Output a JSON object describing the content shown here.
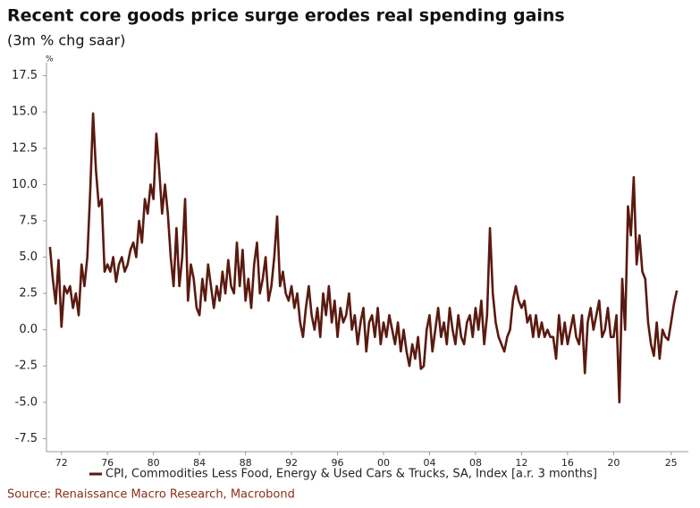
{
  "chart_data": {
    "type": "line",
    "title": "Recent core goods price surge erodes real spending gains",
    "subtitle": "(3m % chg saar)",
    "y_axis_label": "%",
    "source": "Source: Renaissance Macro Research, Macrobond",
    "x": [
      1971,
      1971.25,
      1971.5,
      1971.75,
      1972,
      1972.25,
      1972.5,
      1972.75,
      1973,
      1973.25,
      1973.5,
      1973.75,
      1974,
      1974.25,
      1974.5,
      1974.75,
      1975,
      1975.25,
      1975.5,
      1975.75,
      1976,
      1976.25,
      1976.5,
      1976.75,
      1977,
      1977.25,
      1977.5,
      1977.75,
      1978,
      1978.25,
      1978.5,
      1978.75,
      1979,
      1979.25,
      1979.5,
      1979.75,
      1980,
      1980.25,
      1980.5,
      1980.75,
      1981,
      1981.25,
      1981.5,
      1981.75,
      1982,
      1982.25,
      1982.5,
      1982.75,
      1983,
      1983.25,
      1983.5,
      1983.75,
      1984,
      1984.25,
      1984.5,
      1984.75,
      1985,
      1985.25,
      1985.5,
      1985.75,
      1986,
      1986.25,
      1986.5,
      1986.75,
      1987,
      1987.25,
      1987.5,
      1987.75,
      1988,
      1988.25,
      1988.5,
      1988.75,
      1989,
      1989.25,
      1989.5,
      1989.75,
      1990,
      1990.25,
      1990.5,
      1990.75,
      1991,
      1991.25,
      1991.5,
      1991.75,
      1992,
      1992.25,
      1992.5,
      1992.75,
      1993,
      1993.25,
      1993.5,
      1993.75,
      1994,
      1994.25,
      1994.5,
      1994.75,
      1995,
      1995.25,
      1995.5,
      1995.75,
      1996,
      1996.25,
      1996.5,
      1996.75,
      1997,
      1997.25,
      1997.5,
      1997.75,
      1998,
      1998.25,
      1998.5,
      1998.75,
      1999,
      1999.25,
      1999.5,
      1999.75,
      2000,
      2000.25,
      2000.5,
      2000.75,
      2001,
      2001.25,
      2001.5,
      2001.75,
      2002,
      2002.25,
      2002.5,
      2002.75,
      2003,
      2003.25,
      2003.5,
      2003.75,
      2004,
      2004.25,
      2004.5,
      2004.75,
      2005,
      2005.25,
      2005.5,
      2005.75,
      2006,
      2006.25,
      2006.5,
      2006.75,
      2007,
      2007.25,
      2007.5,
      2007.75,
      2008,
      2008.25,
      2008.5,
      2008.75,
      2009,
      2009.25,
      2009.5,
      2009.75,
      2010,
      2010.25,
      2010.5,
      2010.75,
      2011,
      2011.25,
      2011.5,
      2011.75,
      2012,
      2012.25,
      2012.5,
      2012.75,
      2013,
      2013.25,
      2013.5,
      2013.75,
      2014,
      2014.25,
      2014.5,
      2014.75,
      2015,
      2015.25,
      2015.5,
      2015.75,
      2016,
      2016.25,
      2016.5,
      2016.75,
      2017,
      2017.25,
      2017.5,
      2017.75,
      2018,
      2018.25,
      2018.5,
      2018.75,
      2019,
      2019.25,
      2019.5,
      2019.75,
      2020,
      2020.25,
      2020.5,
      2020.75,
      2021,
      2021.25,
      2021.5,
      2021.75,
      2022,
      2022.25,
      2022.5,
      2022.75,
      2023,
      2023.25,
      2023.5,
      2023.75,
      2024,
      2024.25,
      2024.5,
      2024.75,
      2025,
      2025.25,
      2025.5
    ],
    "series": [
      {
        "name": "CPI, Commodities Less Food, Energy & Used Cars & Trucks, SA, Index [a.r. 3 months]",
        "color": "#5a1a10",
        "values": [
          5.7,
          3.5,
          1.8,
          4.8,
          0.2,
          3.0,
          2.5,
          3.0,
          1.5,
          2.5,
          1.0,
          4.5,
          3.0,
          5.0,
          9.5,
          14.9,
          11.0,
          8.5,
          9.0,
          4.0,
          4.5,
          4.0,
          5.0,
          3.3,
          4.5,
          5.0,
          4.0,
          4.5,
          5.5,
          6.0,
          5.0,
          7.5,
          6.0,
          9.0,
          8.0,
          10.0,
          9.0,
          13.5,
          11.0,
          8.0,
          10.0,
          8.0,
          5.0,
          3.0,
          7.0,
          3.0,
          5.0,
          9.0,
          2.0,
          4.5,
          3.5,
          1.5,
          1.0,
          3.5,
          2.0,
          4.5,
          3.0,
          1.5,
          3.0,
          2.0,
          4.0,
          2.5,
          4.8,
          3.0,
          2.5,
          6.0,
          3.0,
          5.5,
          2.0,
          3.5,
          1.5,
          4.5,
          6.0,
          2.5,
          3.5,
          5.0,
          2.0,
          3.0,
          5.0,
          7.8,
          3.0,
          4.0,
          2.5,
          2.0,
          3.0,
          1.5,
          2.5,
          0.5,
          -0.5,
          1.5,
          3.0,
          1.0,
          0.0,
          1.5,
          -0.5,
          2.5,
          1.0,
          3.0,
          0.5,
          2.0,
          -0.5,
          1.5,
          0.5,
          1.0,
          2.5,
          0.0,
          1.0,
          -1.0,
          0.5,
          1.5,
          -1.5,
          0.5,
          1.0,
          -0.5,
          1.5,
          -1.0,
          0.5,
          -0.5,
          1.0,
          0.0,
          -1.0,
          0.5,
          -1.5,
          0.0,
          -1.5,
          -2.5,
          -1.0,
          -2.0,
          -0.5,
          -2.7,
          -2.5,
          0.0,
          1.0,
          -1.5,
          0.0,
          1.5,
          -0.5,
          0.5,
          -1.0,
          1.5,
          0.0,
          -1.0,
          1.0,
          -0.5,
          -1.0,
          0.5,
          1.0,
          -0.5,
          1.5,
          0.0,
          2.0,
          -1.0,
          1.0,
          7.0,
          2.5,
          0.5,
          -0.5,
          -1.0,
          -1.5,
          -0.5,
          0.0,
          2.0,
          3.0,
          2.0,
          1.5,
          2.0,
          0.5,
          1.0,
          -0.5,
          1.0,
          -0.5,
          0.5,
          -0.5,
          0.0,
          -0.5,
          -0.5,
          -2.0,
          1.0,
          -1.0,
          0.5,
          -1.0,
          0.0,
          1.0,
          -0.5,
          -1.0,
          1.0,
          -3.0,
          0.5,
          1.5,
          0.0,
          1.0,
          2.0,
          -0.5,
          0.0,
          1.5,
          -0.5,
          -0.5,
          1.0,
          -5.0,
          3.5,
          0.0,
          8.5,
          6.5,
          10.5,
          4.5,
          6.5,
          4.0,
          3.5,
          0.5,
          -1.0,
          -1.8,
          0.5,
          -2.0,
          0.0,
          -0.5,
          -0.7,
          0.5,
          1.8,
          2.7
        ]
      }
    ],
    "xlim": [
      1970.7,
      2026.5
    ],
    "xticks": [
      {
        "value": 1972,
        "label": "72"
      },
      {
        "value": 1976,
        "label": "76"
      },
      {
        "value": 1980,
        "label": "80"
      },
      {
        "value": 1984,
        "label": "84"
      },
      {
        "value": 1988,
        "label": "88"
      },
      {
        "value": 1992,
        "label": "92"
      },
      {
        "value": 1996,
        "label": "96"
      },
      {
        "value": 2000,
        "label": "00"
      },
      {
        "value": 2004,
        "label": "04"
      },
      {
        "value": 2008,
        "label": "08"
      },
      {
        "value": 2012,
        "label": "12"
      },
      {
        "value": 2016,
        "label": "16"
      },
      {
        "value": 2020,
        "label": "20"
      },
      {
        "value": 2025,
        "label": "25"
      }
    ],
    "ylim": [
      -8.4,
      18.4
    ],
    "yticks": [
      {
        "value": -7.5,
        "label": "-7.5"
      },
      {
        "value": -5,
        "label": "-5.0"
      },
      {
        "value": -2.5,
        "label": "-2.5"
      },
      {
        "value": 0,
        "label": "0.0"
      },
      {
        "value": 2.5,
        "label": "2.5"
      },
      {
        "value": 5,
        "label": "5.0"
      },
      {
        "value": 7.5,
        "label": "7.5"
      },
      {
        "value": 10,
        "label": "10.0"
      },
      {
        "value": 12.5,
        "label": "12.5"
      },
      {
        "value": 15,
        "label": "15.0"
      },
      {
        "value": 17.5,
        "label": "17.5"
      }
    ],
    "grid": false
  }
}
